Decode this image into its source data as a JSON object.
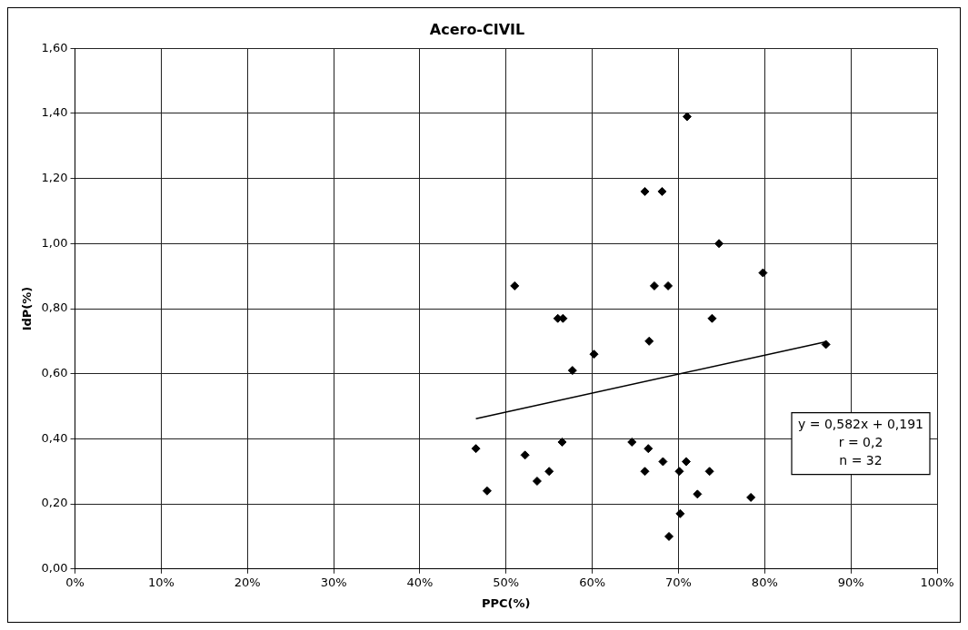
{
  "chart_data": {
    "type": "scatter",
    "title": "Acero-CIVIL",
    "xlabel": "PPC(%)",
    "ylabel": "IdP(%)",
    "xlim": [
      0,
      100
    ],
    "ylim": [
      0,
      1.6
    ],
    "xticks": [
      {
        "value": 0,
        "label": "0%"
      },
      {
        "value": 10,
        "label": "10%"
      },
      {
        "value": 20,
        "label": "20%"
      },
      {
        "value": 30,
        "label": "30%"
      },
      {
        "value": 40,
        "label": "40%"
      },
      {
        "value": 50,
        "label": "50%"
      },
      {
        "value": 60,
        "label": "60%"
      },
      {
        "value": 70,
        "label": "70%"
      },
      {
        "value": 80,
        "label": "80%"
      },
      {
        "value": 90,
        "label": "90%"
      },
      {
        "value": 100,
        "label": "100%"
      }
    ],
    "yticks": [
      {
        "value": 0,
        "label": "0,00"
      },
      {
        "value": 0.2,
        "label": "0,20"
      },
      {
        "value": 0.4,
        "label": "0,40"
      },
      {
        "value": 0.6,
        "label": "0,60"
      },
      {
        "value": 0.8,
        "label": "0,80"
      },
      {
        "value": 1.0,
        "label": "1,00"
      },
      {
        "value": 1.2,
        "label": "1,20"
      },
      {
        "value": 1.4,
        "label": "1,40"
      },
      {
        "value": 1.6,
        "label": "1,60"
      }
    ],
    "grid": true,
    "legend": false,
    "marker": "diamond",
    "series": [
      {
        "color": "#000000",
        "x": [
          46.5,
          47.8,
          51,
          52.2,
          53.6,
          55,
          56,
          56.6,
          56.5,
          57.7,
          60.2,
          64.6,
          66.1,
          66.1,
          66.5,
          66.6,
          67.2,
          68.1,
          68.2,
          68.8,
          68.9,
          70.1,
          70.2,
          70.9,
          71,
          72.2,
          73.6,
          73.9,
          74.7,
          78.4,
          79.8,
          87.1
        ],
        "values": [
          0.37,
          0.24,
          0.87,
          0.35,
          0.27,
          0.3,
          0.77,
          0.77,
          0.39,
          0.61,
          0.66,
          0.39,
          1.16,
          0.3,
          0.37,
          0.7,
          0.87,
          1.16,
          0.33,
          0.87,
          0.1,
          0.3,
          0.17,
          0.33,
          1.39,
          0.23,
          0.3,
          0.77,
          1.0,
          0.22,
          0.91,
          0.69
        ]
      },
      {
        "type": "line",
        "color": "#000000",
        "x": [
          46.5,
          87.1
        ],
        "values": [
          0.462,
          0.698
        ],
        "marker": "none"
      }
    ],
    "annotations": [
      "y = 0,582x + 0,191",
      "r = 0,2",
      "n = 32"
    ]
  }
}
